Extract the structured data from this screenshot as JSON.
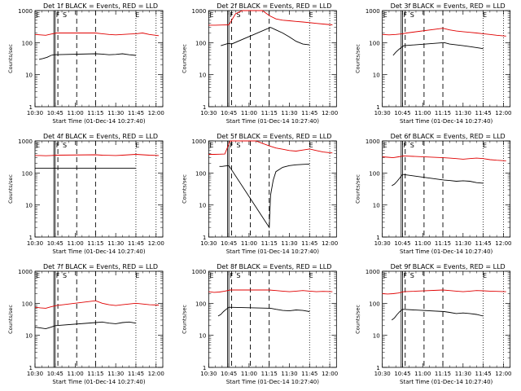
{
  "colors": {
    "events": "#000000",
    "lld": "#e00000",
    "frame": "#000000",
    "background": "#ffffff"
  },
  "chart_data": [
    {
      "type": "line",
      "title": "Det 1f BLACK = Events, RED = LLD",
      "ylabel": "Counts/sec",
      "xlabel": "Start Time (01-Dec-14 10:27:40)",
      "xticks": [
        "10:30",
        "10:45",
        "11:00",
        "11:15",
        "11:30",
        "11:45",
        "12:00"
      ],
      "yticks": [
        "1",
        "10",
        "100",
        "1000"
      ],
      "yscale": "log",
      "ylim": [
        1,
        1000
      ],
      "markers": [
        "E",
        "F",
        "S",
        "E"
      ],
      "series": [
        {
          "color": "black",
          "x": [
            "10:33",
            "10:36",
            "10:39",
            "10:42",
            "10:44",
            "11:15",
            "11:20",
            "11:25",
            "11:30",
            "11:35",
            "11:40",
            "11:45"
          ],
          "values": [
            30,
            32,
            35,
            40,
            42,
            45,
            44,
            42,
            43,
            45,
            42,
            40
          ]
        },
        {
          "color": "red",
          "x": [
            "10:30",
            "10:34",
            "10:38",
            "10:42",
            "10:46",
            "11:15",
            "11:20",
            "11:25",
            "11:30",
            "11:35",
            "11:40",
            "11:45",
            "11:50",
            "11:55",
            "12:02"
          ],
          "values": [
            180,
            175,
            170,
            185,
            200,
            200,
            190,
            180,
            175,
            180,
            185,
            190,
            200,
            180,
            165
          ]
        }
      ]
    },
    {
      "type": "line",
      "title": "Det 2f BLACK = Events, RED = LLD",
      "ylabel": "Counts/sec",
      "xlabel": "Start Time (01-Dec-14 10:27:40)",
      "xticks": [
        "10:30",
        "10:45",
        "11:00",
        "11:15",
        "11:30",
        "11:45",
        "12:00"
      ],
      "yticks": [
        "1",
        "10",
        "100",
        "1000"
      ],
      "yscale": "log",
      "ylim": [
        1,
        1000
      ],
      "markers": [
        "E",
        "F",
        "S",
        "E"
      ],
      "series": [
        {
          "color": "black",
          "x": [
            "10:39",
            "10:41",
            "10:43",
            "10:45",
            "10:47",
            "11:16",
            "11:20",
            "11:25",
            "11:30",
            "11:35",
            "11:40",
            "11:45"
          ],
          "values": [
            80,
            85,
            90,
            95,
            90,
            300,
            250,
            200,
            150,
            110,
            90,
            85
          ]
        },
        {
          "color": "red",
          "x": [
            "10:30",
            "10:35",
            "10:40",
            "10:45",
            "10:50",
            "10:55",
            "11:00",
            "11:05",
            "11:10",
            "11:15",
            "11:20",
            "11:25",
            "11:30",
            "11:35",
            "11:40",
            "11:45",
            "11:50",
            "11:55",
            "12:02"
          ],
          "values": [
            350,
            350,
            355,
            360,
            800,
            1000,
            1000,
            1000,
            1000,
            700,
            550,
            500,
            480,
            460,
            440,
            420,
            400,
            380,
            360
          ]
        }
      ]
    },
    {
      "type": "line",
      "title": "Det 3f BLACK = Events, RED = LLD",
      "ylabel": "Counts/sec",
      "xlabel": "Start Time (01-Dec-14 10:27:40)",
      "xticks": [
        "10:30",
        "10:45",
        "11:00",
        "11:15",
        "11:30",
        "11:45",
        "12:00"
      ],
      "yticks": [
        "1",
        "10",
        "100",
        "1000"
      ],
      "yscale": "log",
      "ylim": [
        1,
        1000
      ],
      "markers": [
        "E",
        "F",
        "S",
        "E"
      ],
      "series": [
        {
          "color": "black",
          "x": [
            "10:38",
            "10:40",
            "10:42",
            "10:44",
            "10:46",
            "11:16",
            "11:20",
            "11:25",
            "11:30",
            "11:35",
            "11:40",
            "11:45"
          ],
          "values": [
            40,
            50,
            60,
            70,
            80,
            100,
            90,
            85,
            80,
            75,
            70,
            65
          ]
        },
        {
          "color": "red",
          "x": [
            "10:30",
            "10:35",
            "10:40",
            "10:45",
            "10:48",
            "11:15",
            "11:20",
            "11:25",
            "11:30",
            "11:35",
            "11:40",
            "11:45",
            "11:50",
            "11:55",
            "12:02"
          ],
          "values": [
            180,
            175,
            180,
            190,
            200,
            280,
            250,
            230,
            220,
            210,
            200,
            190,
            180,
            170,
            160
          ]
        }
      ]
    },
    {
      "type": "line",
      "title": "Det 4f BLACK = Events, RED = LLD",
      "ylabel": "Counts/sec",
      "xlabel": "Start Time (01-Dec-14 10:27:40)",
      "xticks": [
        "10:30",
        "10:45",
        "11:00",
        "11:15",
        "11:30",
        "11:45",
        "12:00"
      ],
      "yticks": [
        "1",
        "10",
        "100",
        "1000"
      ],
      "yscale": "log",
      "ylim": [
        1,
        1000
      ],
      "markers": [
        "E",
        "F",
        "S",
        "E"
      ],
      "series": [
        {
          "color": "black",
          "x": [
            "10:30",
            "10:34",
            "10:38",
            "10:42",
            "10:45",
            "11:15",
            "11:20",
            "11:25",
            "11:30",
            "11:35",
            "11:40",
            "11:45"
          ],
          "values": [
            140,
            140,
            140,
            140,
            140,
            140,
            140,
            140,
            140,
            140,
            140,
            140
          ]
        },
        {
          "color": "red",
          "x": [
            "10:30",
            "10:34",
            "10:38",
            "10:42",
            "10:46",
            "11:15",
            "11:20",
            "11:25",
            "11:30",
            "11:35",
            "11:40",
            "11:45",
            "11:50",
            "11:55",
            "12:02"
          ],
          "values": [
            350,
            350,
            345,
            350,
            360,
            370,
            360,
            355,
            350,
            360,
            370,
            380,
            370,
            360,
            350
          ]
        }
      ]
    },
    {
      "type": "line",
      "title": "Det 5f BLACK = Events, RED = LLD",
      "ylabel": "Counts/sec",
      "xlabel": "Start Time (01-Dec-14 10:27:40)",
      "xticks": [
        "10:30",
        "10:45",
        "11:00",
        "11:15",
        "11:30",
        "11:45",
        "12:00"
      ],
      "yticks": [
        "1",
        "10",
        "100",
        "1000"
      ],
      "yscale": "log",
      "ylim": [
        1,
        1000
      ],
      "markers": [
        "E",
        "F",
        "S",
        "E"
      ],
      "series": [
        {
          "color": "black",
          "x": [
            "10:38",
            "10:40",
            "10:42",
            "10:45",
            "11:15",
            "11:16",
            "11:18",
            "11:20",
            "11:25",
            "11:30",
            "11:35",
            "11:40",
            "11:45"
          ],
          "values": [
            160,
            160,
            165,
            170,
            2,
            20,
            60,
            110,
            150,
            170,
            180,
            185,
            190
          ]
        },
        {
          "color": "red",
          "x": [
            "10:30",
            "10:34",
            "10:38",
            "10:42",
            "10:46",
            "10:55",
            "11:05",
            "11:15",
            "11:20",
            "11:25",
            "11:30",
            "11:35",
            "11:40",
            "11:45",
            "11:50",
            "11:55",
            "12:02"
          ],
          "values": [
            380,
            380,
            385,
            390,
            1000,
            1000,
            1000,
            700,
            600,
            550,
            500,
            480,
            520,
            560,
            500,
            450,
            420
          ]
        }
      ]
    },
    {
      "type": "line",
      "title": "Det 6f BLACK = Events, RED = LLD",
      "ylabel": "Counts/sec",
      "xlabel": "Start Time (01-Dec-14 10:27:40)",
      "xticks": [
        "10:30",
        "10:45",
        "11:00",
        "11:15",
        "11:30",
        "11:45",
        "12:00"
      ],
      "yticks": [
        "1",
        "10",
        "100",
        "1000"
      ],
      "yscale": "log",
      "ylim": [
        1,
        1000
      ],
      "markers": [
        "E",
        "F",
        "S",
        "E"
      ],
      "series": [
        {
          "color": "black",
          "x": [
            "10:37",
            "10:39",
            "10:41",
            "10:43",
            "10:45",
            "11:16",
            "11:20",
            "11:25",
            "11:30",
            "11:35",
            "11:40",
            "11:45"
          ],
          "values": [
            40,
            45,
            55,
            70,
            90,
            60,
            58,
            55,
            57,
            55,
            50,
            48
          ]
        },
        {
          "color": "red",
          "x": [
            "10:30",
            "10:34",
            "10:38",
            "10:42",
            "10:46",
            "11:15",
            "11:20",
            "11:25",
            "11:30",
            "11:35",
            "11:40",
            "11:45",
            "11:50",
            "11:55",
            "12:02"
          ],
          "values": [
            320,
            310,
            300,
            320,
            340,
            300,
            290,
            280,
            270,
            280,
            290,
            280,
            260,
            250,
            240
          ]
        }
      ]
    },
    {
      "type": "line",
      "title": "Det 7f BLACK = Events, RED = LLD",
      "ylabel": "Counts/sec",
      "xlabel": "Start Time (01-Dec-14 10:27:40)",
      "xticks": [
        "10:30",
        "10:45",
        "11:00",
        "11:15",
        "11:30",
        "11:45",
        "12:00"
      ],
      "yticks": [
        "1",
        "10",
        "100",
        "1000"
      ],
      "yscale": "log",
      "ylim": [
        1,
        1000
      ],
      "markers": [
        "E",
        "F",
        "S",
        "E"
      ],
      "series": [
        {
          "color": "black",
          "x": [
            "10:30",
            "10:34",
            "10:38",
            "10:42",
            "10:45",
            "11:15",
            "11:20",
            "11:25",
            "11:30",
            "11:35",
            "11:40",
            "11:45"
          ],
          "values": [
            18,
            17,
            16,
            18,
            20,
            25,
            26,
            24,
            23,
            25,
            26,
            24
          ]
        },
        {
          "color": "red",
          "x": [
            "10:30",
            "10:34",
            "10:38",
            "10:42",
            "10:46",
            "11:15",
            "11:20",
            "11:25",
            "11:30",
            "11:35",
            "11:40",
            "11:45",
            "11:50",
            "11:55",
            "12:02"
          ],
          "values": [
            75,
            72,
            70,
            78,
            85,
            120,
            100,
            90,
            85,
            90,
            95,
            100,
            95,
            90,
            88
          ]
        }
      ]
    },
    {
      "type": "line",
      "title": "Det 8f BLACK = Events, RED = LLD",
      "ylabel": "Counts/sec",
      "xlabel": "Start Time (01-Dec-14 10:27:40)",
      "xticks": [
        "10:30",
        "10:45",
        "11:00",
        "11:15",
        "11:30",
        "11:45",
        "12:00"
      ],
      "yticks": [
        "1",
        "10",
        "100",
        "1000"
      ],
      "yscale": "log",
      "ylim": [
        1,
        1000
      ],
      "markers": [
        "E",
        "F",
        "S",
        "E"
      ],
      "series": [
        {
          "color": "black",
          "x": [
            "10:37",
            "10:39",
            "10:41",
            "10:43",
            "10:45",
            "11:16",
            "11:20",
            "11:25",
            "11:30",
            "11:35",
            "11:40",
            "11:45"
          ],
          "values": [
            40,
            45,
            55,
            65,
            75,
            70,
            65,
            60,
            58,
            62,
            60,
            55
          ]
        },
        {
          "color": "red",
          "x": [
            "10:30",
            "10:34",
            "10:38",
            "10:42",
            "10:46",
            "11:15",
            "11:20",
            "11:25",
            "11:30",
            "11:35",
            "11:40",
            "11:45",
            "11:50",
            "11:55",
            "12:02"
          ],
          "values": [
            230,
            220,
            225,
            240,
            260,
            260,
            250,
            240,
            230,
            240,
            250,
            240,
            230,
            235,
            230
          ]
        }
      ]
    },
    {
      "type": "line",
      "title": "Det 9f BLACK = Events, RED = LLD",
      "ylabel": "Counts/sec",
      "xlabel": "Start Time (01-Dec-14 10:27:40)",
      "xticks": [
        "10:30",
        "10:45",
        "11:00",
        "11:15",
        "11:30",
        "11:45",
        "12:00"
      ],
      "yticks": [
        "1",
        "10",
        "100",
        "1000"
      ],
      "yscale": "log",
      "ylim": [
        1,
        1000
      ],
      "markers": [
        "E",
        "F",
        "S",
        "E"
      ],
      "series": [
        {
          "color": "black",
          "x": [
            "10:37",
            "10:39",
            "10:41",
            "10:43",
            "10:45",
            "11:16",
            "11:20",
            "11:25",
            "11:30",
            "11:35",
            "11:40",
            "11:45"
          ],
          "values": [
            30,
            35,
            45,
            55,
            65,
            55,
            52,
            48,
            50,
            48,
            45,
            40
          ]
        },
        {
          "color": "red",
          "x": [
            "10:30",
            "10:34",
            "10:38",
            "10:42",
            "10:46",
            "11:15",
            "11:20",
            "11:25",
            "11:30",
            "11:35",
            "11:40",
            "11:45",
            "11:50",
            "11:55",
            "12:02"
          ],
          "values": [
            200,
            195,
            200,
            210,
            230,
            260,
            250,
            240,
            230,
            240,
            250,
            245,
            240,
            235,
            230
          ]
        }
      ]
    }
  ]
}
